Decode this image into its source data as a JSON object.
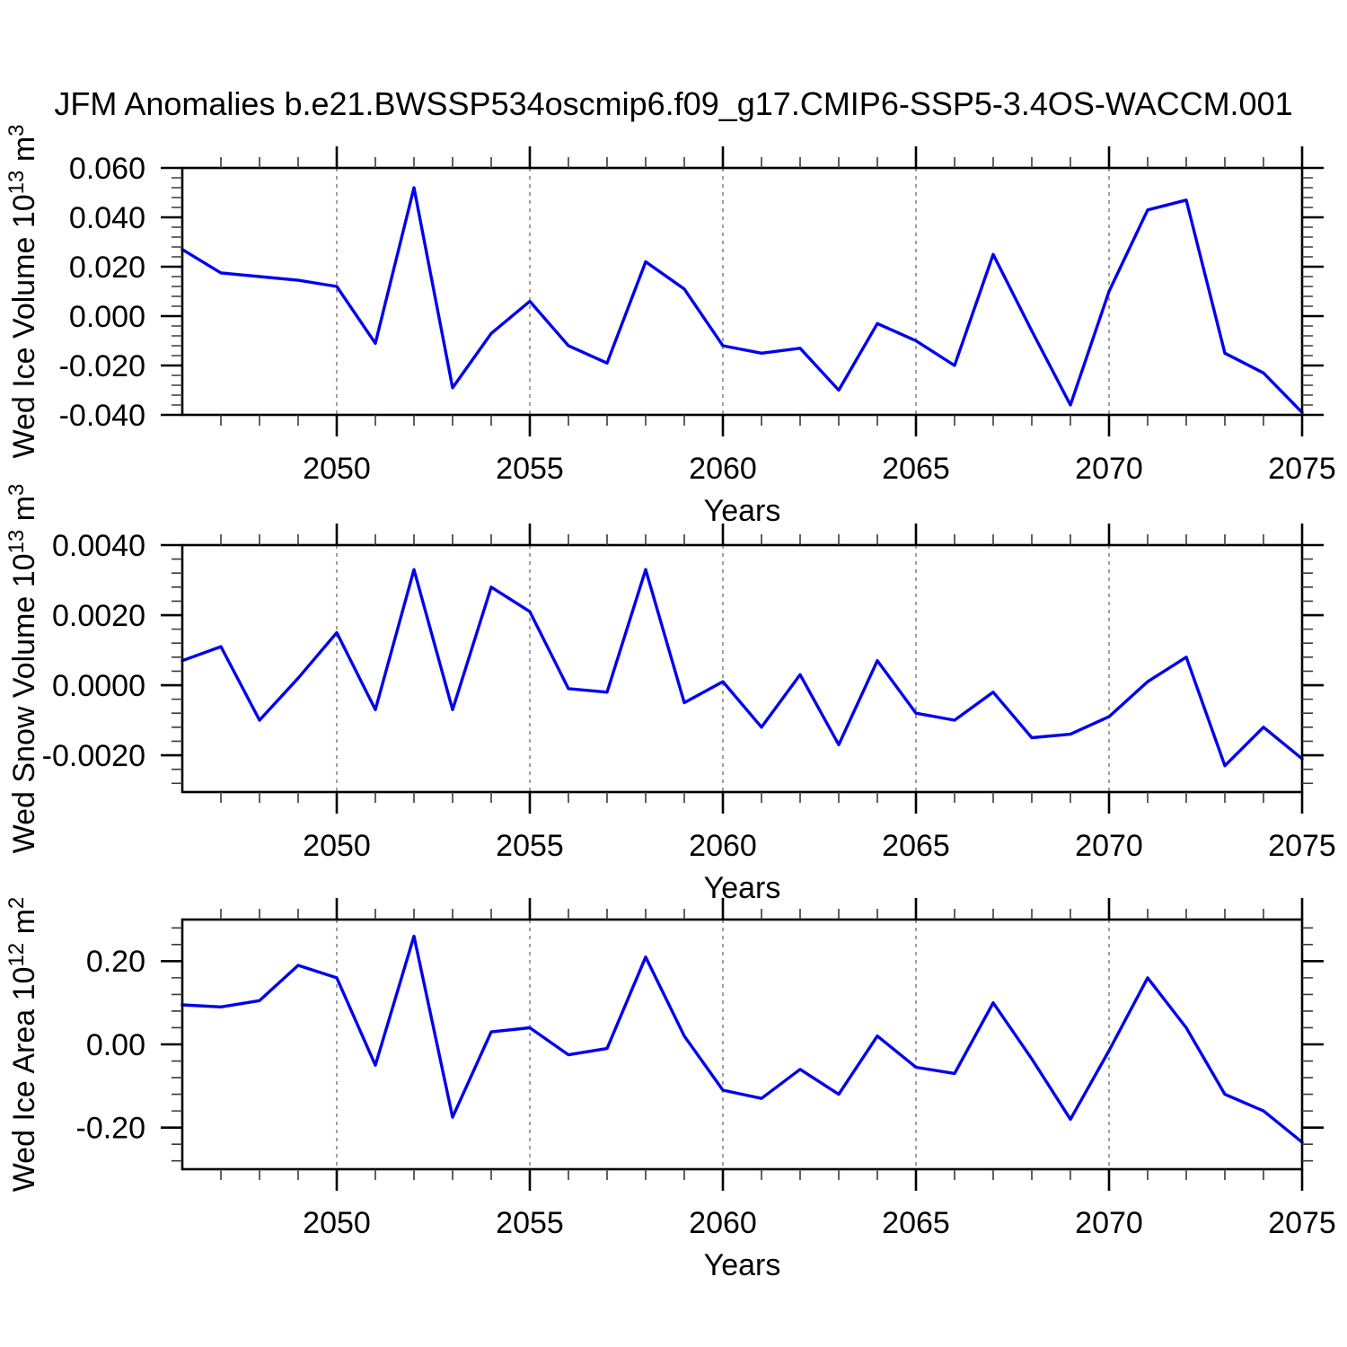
{
  "title": "JFM Anomalies b.e21.BWSSP534oscmip6.f09_g17.CMIP6-SSP5-3.4OS-WACCM.001",
  "line_color": "#0000ee",
  "grid_color": "#777777",
  "axis_color": "#000000",
  "chart_data": [
    {
      "type": "line",
      "name": "wed-ice-volume",
      "ylabel_segments": [
        {
          "text": "Wed Ice Volume 10",
          "sup": false
        },
        {
          "text": "13",
          "sup": true
        },
        {
          "text": " m",
          "sup": false
        },
        {
          "text": "3",
          "sup": true
        }
      ],
      "xlabel": "Years",
      "x": [
        2046,
        2047,
        2048,
        2049,
        2050,
        2051,
        2052,
        2053,
        2054,
        2055,
        2056,
        2057,
        2058,
        2059,
        2060,
        2061,
        2062,
        2063,
        2064,
        2065,
        2066,
        2067,
        2068,
        2069,
        2070,
        2071,
        2072,
        2073,
        2074,
        2075
      ],
      "values": [
        0.027,
        0.0175,
        0.016,
        0.0145,
        0.012,
        -0.011,
        0.052,
        -0.029,
        -0.007,
        0.006,
        -0.012,
        -0.019,
        0.022,
        0.011,
        -0.012,
        -0.015,
        -0.013,
        -0.03,
        -0.003,
        -0.01,
        -0.02,
        0.025,
        -0.006,
        -0.036,
        0.01,
        0.043,
        0.047,
        -0.015,
        -0.023,
        -0.039
      ],
      "xlim": [
        2046,
        2075
      ],
      "ylim": [
        -0.04,
        0.06
      ],
      "yticks": {
        "values": [
          0.06,
          0.04,
          0.02,
          0.0,
          -0.02,
          -0.04
        ],
        "labels": [
          "0.060",
          "0.040",
          "0.020",
          "0.000",
          "-0.020",
          "-0.040"
        ],
        "minor_step": 0.004
      },
      "xticks": {
        "values": [
          2050,
          2055,
          2060,
          2065,
          2070,
          2075
        ],
        "labels": [
          "2050",
          "2055",
          "2060",
          "2065",
          "2070",
          "2075"
        ],
        "minor_step": 1
      },
      "grid_x": [
        2050,
        2055,
        2060,
        2065,
        2070
      ],
      "grid": "vertical-dashed",
      "legend": "none"
    },
    {
      "type": "line",
      "name": "wed-snow-volume",
      "ylabel_segments": [
        {
          "text": "Wed Snow Volume 10",
          "sup": false
        },
        {
          "text": "13",
          "sup": true
        },
        {
          "text": " m",
          "sup": false
        },
        {
          "text": "3",
          "sup": true
        }
      ],
      "xlabel": "Years",
      "x": [
        2046,
        2047,
        2048,
        2049,
        2050,
        2051,
        2052,
        2053,
        2054,
        2055,
        2056,
        2057,
        2058,
        2059,
        2060,
        2061,
        2062,
        2063,
        2064,
        2065,
        2066,
        2067,
        2068,
        2069,
        2070,
        2071,
        2072,
        2073,
        2074,
        2075
      ],
      "values": [
        0.0007,
        0.0011,
        -0.001,
        0.0002,
        0.0015,
        -0.0007,
        0.0033,
        -0.0007,
        0.0028,
        0.0021,
        -0.0001,
        -0.0002,
        0.0033,
        -0.0005,
        0.0001,
        -0.0012,
        0.0003,
        -0.0017,
        0.0007,
        -0.0008,
        -0.001,
        -0.0002,
        -0.0015,
        -0.0014,
        -0.0009,
        0.0001,
        0.0008,
        -0.0023,
        -0.0012,
        -0.0021
      ],
      "xlim": [
        2046,
        2075
      ],
      "ylim": [
        -0.00305,
        0.004
      ],
      "yticks": {
        "values": [
          0.004,
          0.002,
          0.0,
          -0.002
        ],
        "labels": [
          "0.0040",
          "0.0020",
          "0.0000",
          "-0.0020"
        ],
        "minor_step": 0.0004
      },
      "xticks": {
        "values": [
          2050,
          2055,
          2060,
          2065,
          2070,
          2075
        ],
        "labels": [
          "2050",
          "2055",
          "2060",
          "2065",
          "2070",
          "2075"
        ],
        "minor_step": 1
      },
      "grid_x": [
        2050,
        2055,
        2060,
        2065,
        2070
      ],
      "grid": "vertical-dashed",
      "legend": "none"
    },
    {
      "type": "line",
      "name": "wed-ice-area",
      "ylabel_segments": [
        {
          "text": "Wed Ice Area 10",
          "sup": false
        },
        {
          "text": "12",
          "sup": true
        },
        {
          "text": " m",
          "sup": false
        },
        {
          "text": "2",
          "sup": true
        }
      ],
      "xlabel": "Years",
      "x": [
        2046,
        2047,
        2048,
        2049,
        2050,
        2051,
        2052,
        2053,
        2054,
        2055,
        2056,
        2057,
        2058,
        2059,
        2060,
        2061,
        2062,
        2063,
        2064,
        2065,
        2066,
        2067,
        2068,
        2069,
        2070,
        2071,
        2072,
        2073,
        2074,
        2075
      ],
      "values": [
        0.095,
        0.09,
        0.105,
        0.19,
        0.16,
        -0.05,
        0.26,
        -0.175,
        0.03,
        0.04,
        -0.025,
        -0.01,
        0.21,
        0.02,
        -0.11,
        -0.13,
        -0.06,
        -0.12,
        0.02,
        -0.055,
        -0.07,
        0.1,
        -0.035,
        -0.18,
        -0.015,
        0.16,
        0.04,
        -0.12,
        -0.16,
        -0.235
      ],
      "xlim": [
        2046,
        2075
      ],
      "ylim": [
        -0.3,
        0.3
      ],
      "yticks": {
        "values": [
          0.2,
          0.0,
          -0.2
        ],
        "labels": [
          "0.20",
          "0.00",
          "-0.20"
        ],
        "minor_step": 0.04
      },
      "xticks": {
        "values": [
          2050,
          2055,
          2060,
          2065,
          2070,
          2075
        ],
        "labels": [
          "2050",
          "2055",
          "2060",
          "2065",
          "2070",
          "2075"
        ],
        "minor_step": 1
      },
      "grid_x": [
        2050,
        2055,
        2060,
        2065,
        2070
      ],
      "grid": "vertical-dashed",
      "legend": "none"
    }
  ]
}
